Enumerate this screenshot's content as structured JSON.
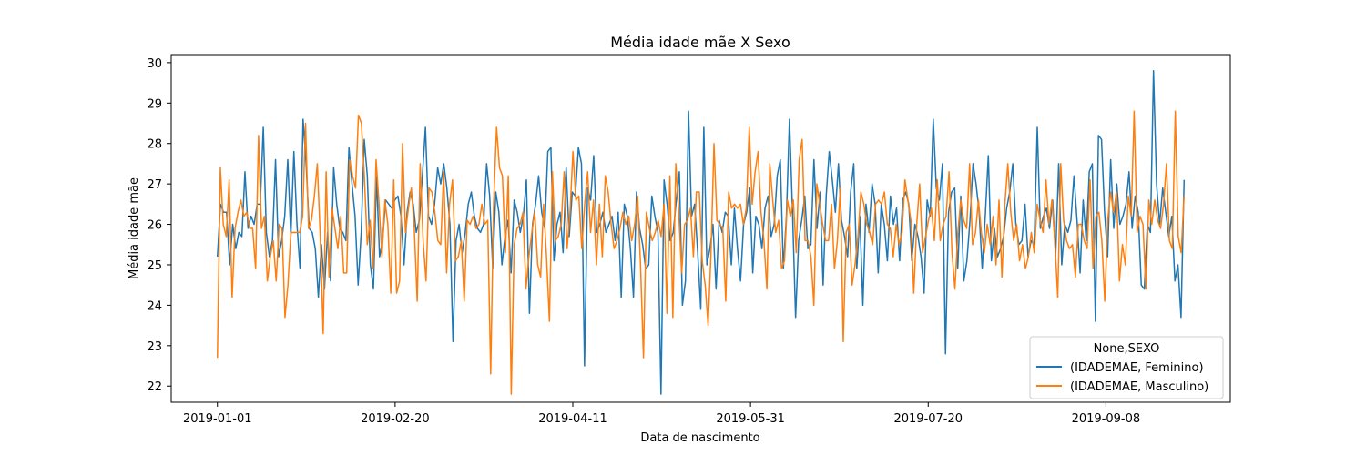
{
  "chart_data": {
    "type": "line",
    "title": "Média idade mãe X Sexo",
    "xlabel": "Data de nascimento",
    "ylabel": "Média idade mãe",
    "x_ticks": [
      "2019-01-01",
      "2019-02-20",
      "2019-04-11",
      "2019-05-31",
      "2019-07-20",
      "2019-09-08"
    ],
    "x_start": "2019-01-01",
    "x_end": "2019-09-30",
    "xlim": [
      "2018-12-19",
      "2019-10-13"
    ],
    "y_ticks": [
      22,
      23,
      24,
      25,
      26,
      27,
      28,
      29,
      30
    ],
    "ylim": [
      21.6,
      30.2
    ],
    "grid": false,
    "legend": {
      "title": "None,SEXO",
      "position": "lower-right"
    },
    "series": [
      {
        "name": "(IDADEMAE, Feminino)",
        "color": "#1f77b4",
        "values": [
          25.2,
          26.5,
          26.3,
          26.3,
          25.0,
          26.0,
          25.4,
          25.8,
          25.7,
          27.3,
          25.9,
          26.2,
          26.0,
          26.5,
          26.5,
          28.4,
          25.8,
          25.2,
          25.6,
          27.6,
          25.2,
          25.6,
          26.2,
          27.6,
          25.7,
          27.8,
          26.0,
          24.9,
          28.6,
          27.5,
          25.9,
          25.8,
          25.4,
          24.2,
          25.5,
          24.4,
          25.8,
          24.6,
          27.4,
          26.5,
          25.9,
          25.8,
          25.6,
          27.9,
          27.0,
          26.2,
          24.5,
          25.8,
          28.1,
          27.2,
          25.0,
          24.4,
          27.2,
          25.2,
          25.6,
          26.6,
          26.5,
          26.4,
          26.6,
          26.7,
          26.2,
          25.0,
          26.3,
          26.8,
          26.5,
          25.8,
          26.1,
          27.2,
          28.4,
          26.2,
          26.0,
          26.5,
          27.4,
          27.0,
          27.5,
          26.9,
          26.0,
          23.1,
          25.6,
          26.0,
          25.3,
          25.8,
          26.5,
          26.8,
          26.2,
          25.9,
          25.8,
          26.0,
          27.5,
          26.7,
          24.9,
          26.8,
          26.3,
          25.0,
          25.7,
          26.1,
          24.8,
          26.6,
          26.3,
          25.8,
          26.2,
          27.1,
          23.8,
          26.0,
          26.5,
          27.2,
          26.3,
          25.9,
          27.8,
          27.9,
          25.1,
          26.0,
          26.3,
          25.3,
          27.4,
          25.7,
          26.8,
          26.7,
          27.9,
          27.5,
          22.5,
          26.9,
          26.6,
          27.7,
          25.8,
          26.0,
          26.3,
          25.8,
          26.0,
          26.2,
          25.6,
          26.3,
          24.2,
          26.5,
          26.2,
          25.4,
          24.2,
          26.8,
          25.9,
          25.5,
          24.9,
          25.0,
          26.7,
          26.2,
          25.8,
          21.8,
          27.1,
          26.5,
          25.6,
          25.8,
          26.6,
          27.3,
          24.0,
          24.6,
          28.8,
          26.2,
          26.5,
          25.3,
          23.9,
          28.4,
          25.0,
          25.4,
          26.0,
          24.4,
          26.1,
          25.8,
          26.3,
          26.2,
          25.0,
          26.4,
          25.4,
          24.6,
          26.0,
          26.3,
          26.9,
          24.8,
          26.2,
          26.0,
          25.4,
          26.4,
          26.7,
          25.7,
          26.0,
          27.2,
          27.6,
          24.9,
          26.2,
          28.6,
          26.3,
          23.7,
          25.6,
          26.1,
          26.7,
          25.4,
          25.5,
          27.6,
          25.9,
          26.8,
          24.5,
          26.7,
          27.8,
          27.1,
          26.3,
          27.5,
          26.1,
          25.7,
          25.2,
          26.8,
          27.5,
          24.9,
          26.2,
          24.0,
          26.5,
          25.8,
          27.0,
          26.5,
          24.8,
          26.5,
          26.0,
          25.1,
          26.7,
          26.0,
          26.4,
          25.1,
          26.6,
          26.8,
          26.5,
          25.1,
          26.0,
          25.7,
          25.2,
          24.3,
          26.6,
          26.2,
          28.6,
          26.9,
          26.6,
          27.5,
          22.8,
          26.3,
          26.8,
          26.9,
          24.9,
          26.7,
          24.6,
          25.1,
          26.1,
          27.5,
          27.0,
          26.3,
          24.9,
          26.2,
          27.7,
          25.1,
          25.9,
          25.2,
          25.4,
          25.7,
          26.4,
          26.8,
          27.5,
          26.0,
          25.5,
          25.6,
          26.5,
          25.2,
          25.6,
          25.5,
          28.4,
          25.9,
          26.2,
          26.4,
          25.9,
          26.6,
          25.2,
          27.5,
          25.0,
          26.0,
          25.8,
          26.1,
          27.2,
          26.1,
          24.8,
          26.6,
          25.6,
          27.3,
          27.5,
          23.6,
          28.2,
          28.1,
          26.3,
          25.2,
          27.6,
          25.9,
          27.0,
          26.0,
          26.2,
          26.5,
          27.3,
          25.9,
          26.7,
          26.3,
          24.5,
          24.4,
          26.0,
          25.8,
          29.8,
          27.0,
          26.0,
          26.9,
          26.3,
          25.7,
          26.2,
          24.6,
          25.0,
          23.7,
          27.1
        ]
      },
      {
        "name": "(IDADEMAE, Masculino)",
        "color": "#ff7f0e",
        "values": [
          22.7,
          27.4,
          26.0,
          25.7,
          27.1,
          24.2,
          25.9,
          26.3,
          26.6,
          26.2,
          26.3,
          25.9,
          25.9,
          24.9,
          28.2,
          25.9,
          26.2,
          24.6,
          25.2,
          25.6,
          24.6,
          26.0,
          25.9,
          23.7,
          24.5,
          25.8,
          25.8,
          25.8,
          25.8,
          26.2,
          28.5,
          25.9,
          26.1,
          26.7,
          27.5,
          25.7,
          23.3,
          27.3,
          24.7,
          26.4,
          25.9,
          25.4,
          26.2,
          24.8,
          24.8,
          27.6,
          27.2,
          26.9,
          28.7,
          28.5,
          27.2,
          25.5,
          26.1,
          24.9,
          27.6,
          26.5,
          25.2,
          26.6,
          26.0,
          24.3,
          27.1,
          24.3,
          24.6,
          28.0,
          25.8,
          26.4,
          26.9,
          25.9,
          24.1,
          27.5,
          25.6,
          24.6,
          26.9,
          26.8,
          26.3,
          25.6,
          25.5,
          27.3,
          24.8,
          26.5,
          27.1,
          25.1,
          25.2,
          25.6,
          24.1,
          26.1,
          26.0,
          26.2,
          25.9,
          26.0,
          26.5,
          26.0,
          26.1,
          22.3,
          26.5,
          28.4,
          27.4,
          27.2,
          25.3,
          27.2,
          21.8,
          25.5,
          25.9,
          26.0,
          26.3,
          24.4,
          25.2,
          25.8,
          26.3,
          25.0,
          24.7,
          26.5,
          25.2,
          23.6,
          27.3,
          25.6,
          25.7,
          26.0,
          27.3,
          25.4,
          26.3,
          27.8,
          26.6,
          26.7,
          25.4,
          26.5,
          27.3,
          25.8,
          26.6,
          25.0,
          26.5,
          25.2,
          27.2,
          26.8,
          26.0,
          25.4,
          25.6,
          25.9,
          26.3,
          26.0,
          26.2,
          25.6,
          26.0,
          26.7,
          25.0,
          22.7,
          26.3,
          25.9,
          25.6,
          25.8,
          26.1,
          25.7,
          26.5,
          23.8,
          27.2,
          23.7,
          27.5,
          26.3,
          24.8,
          26.0,
          26.1,
          26.4,
          25.2,
          26.8,
          26.8,
          25.1,
          24.5,
          23.5,
          25.3,
          28.0,
          26.1,
          26.0,
          25.9,
          24.1,
          26.8,
          26.4,
          26.5,
          26.4,
          26.5,
          26.0,
          26.4,
          28.4,
          26.5,
          27.3,
          27.8,
          26.3,
          25.6,
          24.4,
          27.5,
          26.6,
          25.8,
          26.1,
          24.9,
          25.1,
          26.6,
          26.2,
          26.6,
          25.3,
          27.6,
          28.1,
          25.6,
          25.6,
          25.2,
          24.0,
          27.0,
          26.5,
          26.0,
          25.6,
          25.6,
          26.5,
          24.9,
          25.6,
          26.9,
          23.1,
          25.8,
          26.0,
          24.5,
          25.0,
          25.7,
          26.8,
          26.5,
          26.0,
          25.8,
          25.5,
          26.5,
          26.6,
          26.5,
          26.8,
          26.0,
          25.9,
          25.2,
          26.0,
          25.5,
          25.8,
          27.1,
          26.6,
          26.1,
          24.3,
          26.0,
          27.0,
          25.3,
          25.7,
          26.1,
          26.4,
          25.6,
          27.1,
          25.6,
          26.0,
          26.2,
          27.3,
          25.3,
          24.4,
          25.8,
          26.6,
          26.1,
          25.9,
          27.5,
          25.5,
          25.8,
          26.6,
          25.8,
          25.3,
          26.0,
          25.5,
          26.2,
          25.0,
          26.6,
          24.7,
          26.5,
          27.5,
          26.3,
          25.6,
          26.0,
          25.1,
          25.5,
          24.9,
          25.2,
          25.8,
          25.3,
          26.5,
          26.1,
          25.8,
          27.1,
          26.0,
          26.6,
          25.6,
          24.2,
          27.5,
          26.1,
          25.6,
          25.4,
          25.5,
          24.7,
          26.0,
          26.0,
          25.6,
          25.4,
          27.1,
          24.9,
          26.2,
          26.3,
          25.6,
          24.1,
          26.1,
          26.8,
          26.3,
          26.8,
          24.6,
          25.5,
          25.0,
          26.7,
          26.2,
          28.8,
          25.8,
          26.2,
          26.0,
          24.4,
          26.6,
          26.0,
          26.6,
          26.1,
          25.9,
          26.5,
          27.5,
          25.6,
          25.4,
          28.8,
          25.7,
          25.3,
          26.7
        ]
      }
    ]
  }
}
